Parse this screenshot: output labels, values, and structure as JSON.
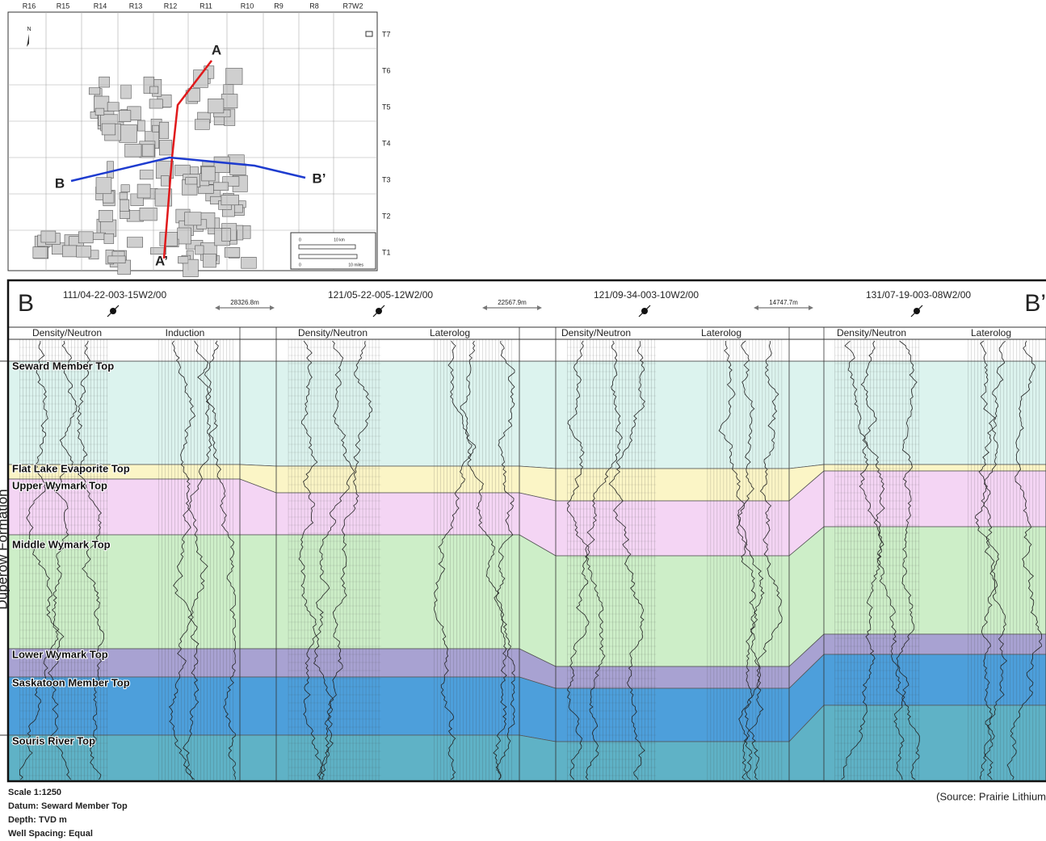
{
  "map": {
    "ranges": [
      "R16",
      "R15",
      "R14",
      "R13",
      "R12",
      "R11",
      "R10",
      "R9",
      "R8",
      "R7W2"
    ],
    "townships": [
      "T7",
      "T6",
      "T5",
      "T4",
      "T3",
      "T2",
      "T1"
    ],
    "north": "N",
    "line_a": "A",
    "line_a_end": "A’",
    "line_b": "B",
    "line_b_end": "B’",
    "scale": [
      "0",
      "10 km",
      "0",
      "10 miles"
    ]
  },
  "section": {
    "left_label": "B",
    "right_label": "B’",
    "wells": [
      {
        "name": "111/04-22-003-15W2/00",
        "logs": [
          "Density/Neutron",
          "Induction"
        ]
      },
      {
        "name": "121/05-22-005-12W2/00",
        "logs": [
          "Density/Neutron",
          "Laterolog"
        ]
      },
      {
        "name": "121/09-34-003-10W2/00",
        "logs": [
          "Density/Neutron",
          "Laterolog"
        ]
      },
      {
        "name": "131/07-19-003-08W2/00",
        "logs": [
          "Density/Neutron",
          "Laterolog"
        ]
      }
    ],
    "spacings": [
      "28326.8m",
      "22567.9m",
      "14747.7m"
    ],
    "formation_label": "Duperow Formation",
    "tops": [
      "Seward Member Top",
      "Flat Lake Evaporite Top",
      "Upper Wymark Top",
      "Middle Wymark Top",
      "Lower Wymark Top",
      "Saskatoon Member Top",
      "Souris River Top"
    ]
  },
  "footer": {
    "notes": [
      "Scale 1:1250",
      "Datum: Seward Member Top",
      "Depth: TVD m",
      "Well Spacing: Equal"
    ],
    "source": "(Source: Prairie Lithium"
  }
}
